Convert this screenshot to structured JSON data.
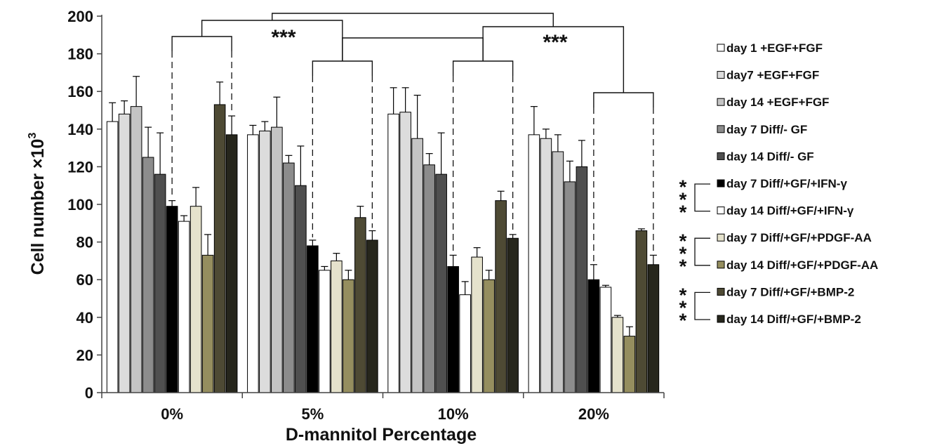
{
  "chart_data": {
    "type": "bar",
    "xlabel": "D-mannitol Percentage",
    "ylabel": "Cell number ×10",
    "ylabel_superscript": "3",
    "ylim": [
      0,
      200
    ],
    "yticks": [
      0,
      20,
      40,
      60,
      80,
      100,
      120,
      140,
      160,
      180,
      200
    ],
    "yticks_text": [
      "0",
      "20",
      "40",
      "60",
      "80",
      "100",
      "120",
      "140",
      "160",
      "180",
      "200"
    ],
    "grid": false,
    "legend_position": "right",
    "categories": [
      "0%",
      "5%",
      "10%",
      "20%"
    ],
    "series": [
      {
        "name": "day 1 +EGF+FGF",
        "color": "#ffffff",
        "values": [
          144,
          137,
          148,
          137
        ],
        "errors": [
          10,
          5,
          14,
          15
        ]
      },
      {
        "name": "day7  +EGF+FGF",
        "color": "#dcdcdc",
        "values": [
          148,
          139,
          149,
          135
        ],
        "errors": [
          7,
          5,
          13,
          5
        ]
      },
      {
        "name": "day 14  +EGF+FGF",
        "color": "#c4c4c4",
        "values": [
          152,
          141,
          135,
          128
        ],
        "errors": [
          16,
          16,
          23,
          9
        ]
      },
      {
        "name": "day 7 Diff/- GF",
        "color": "#8c8c8c",
        "values": [
          125,
          122,
          121,
          112
        ],
        "errors": [
          16,
          4,
          6,
          11
        ]
      },
      {
        "name": "day 14 Diff/- GF",
        "color": "#4f4f4f",
        "values": [
          116,
          110,
          116,
          120
        ],
        "errors": [
          22,
          21,
          22,
          14
        ]
      },
      {
        "name": "day 7 Diff/+GF/+IFN-γ",
        "color": "#000000",
        "values": [
          99,
          78,
          67,
          60
        ],
        "errors": [
          3,
          3,
          6,
          8
        ]
      },
      {
        "name": "day 14 Diff/+GF/+IFN-γ",
        "color": "#ffffff",
        "values": [
          91,
          65,
          52,
          56
        ],
        "errors": [
          3,
          2,
          7,
          1
        ]
      },
      {
        "name": "day 7 Diff/+GF/+PDGF-AA",
        "color": "#e5e2cc",
        "values": [
          99,
          70,
          72,
          40
        ],
        "errors": [
          10,
          4,
          5,
          1
        ]
      },
      {
        "name": "day 14 Diff/+GF/+PDGF-AA",
        "color": "#958e5f",
        "values": [
          73,
          60,
          60,
          30
        ],
        "errors": [
          11,
          5,
          5,
          5
        ]
      },
      {
        "name": "day 7 Diff/+GF/+BMP-2",
        "color": "#4e4a34",
        "values": [
          153,
          93,
          102,
          86
        ],
        "errors": [
          12,
          6,
          5,
          1
        ]
      },
      {
        "name": "day 14 Diff/+GF/+BMP-2",
        "color": "#26261c",
        "values": [
          137,
          81,
          82,
          68
        ],
        "errors": [
          10,
          5,
          2,
          5
        ]
      }
    ],
    "legend_labels": [
      "day 1 +EGF+FGF",
      "day7  +EGF+FGF",
      "day 14  +EGF+FGF",
      "day 7 Diff/- GF",
      "day 14 Diff/- GF",
      "day 7 Diff/+GF/+IFN-γ",
      "day 14 Diff/+GF/+IFN-γ",
      "day 7 Diff/+GF/+PDGF-AA",
      "day 14 Diff/+GF/+PDGF-AA",
      "day 7 Diff/+GF/+BMP-2",
      "day 14 Diff/+GF/+BMP-2"
    ],
    "annotations": {
      "top_significance": [
        "***",
        "***"
      ],
      "legend_significance": [
        "***",
        "***",
        "***"
      ]
    }
  }
}
